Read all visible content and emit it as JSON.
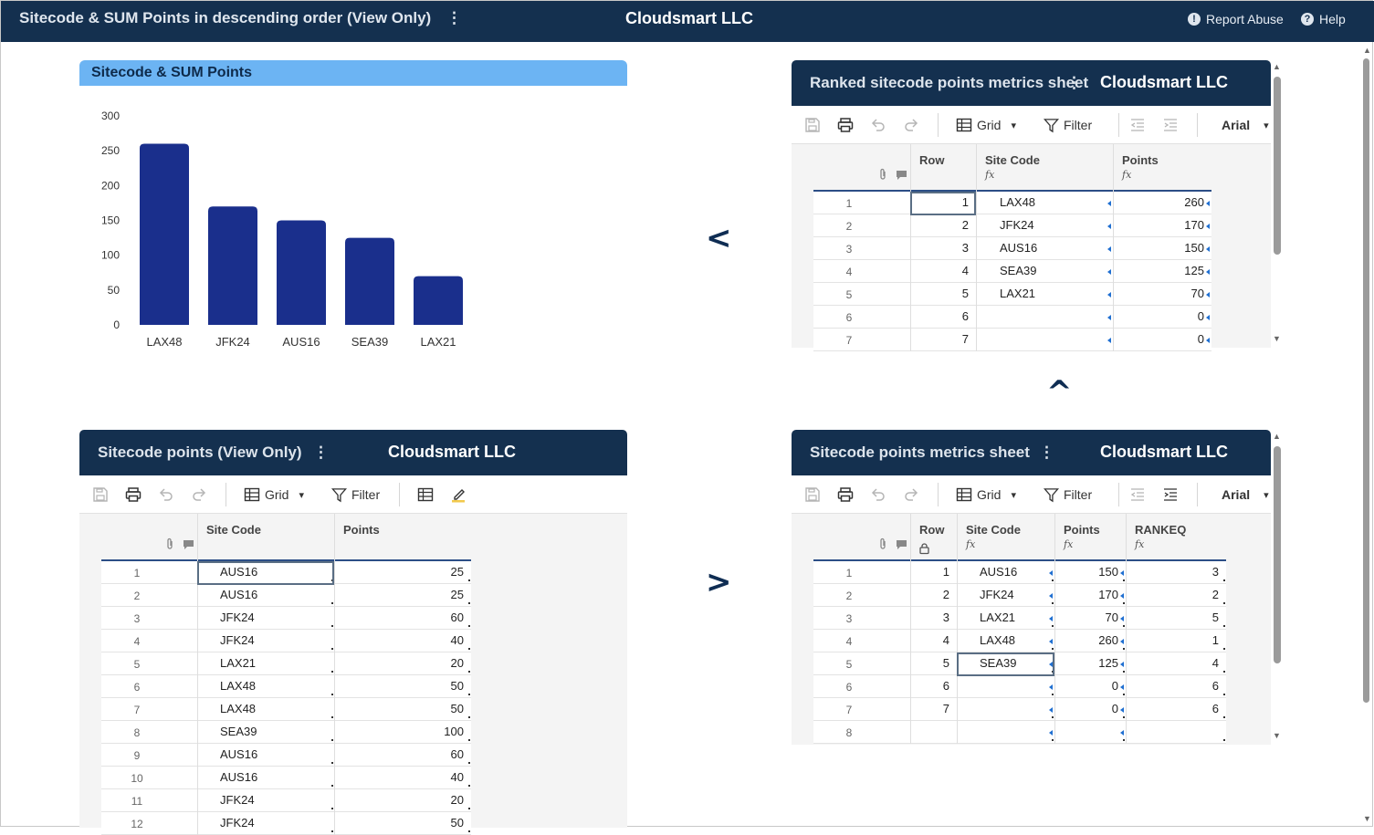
{
  "topbar": {
    "title": "Sitecode & SUM Points in descending order (View Only)",
    "center": "Cloudsmart LLC",
    "report_abuse": "Report Abuse",
    "help": "Help",
    "help_icon": "?",
    "report_icon": "!"
  },
  "chart": {
    "header": "Sitecode & SUM Points"
  },
  "chart_data": {
    "type": "bar",
    "title": "Sitecode & SUM Points",
    "categories": [
      "LAX48",
      "JFK24",
      "AUS16",
      "SEA39",
      "LAX21"
    ],
    "values": [
      260,
      170,
      150,
      125,
      70
    ],
    "ylim": [
      0,
      300
    ],
    "yticks": [
      0,
      50,
      100,
      150,
      200,
      250,
      300
    ],
    "color": "#1a2f8c",
    "grid": false,
    "legend": false
  },
  "arrows": {
    "left": "<",
    "right": ">",
    "up": "^"
  },
  "ranked": {
    "title": "Ranked sitecode points metrics sheet",
    "company": "Cloudsmart LLC",
    "toolbar": {
      "grid": "Grid",
      "filter": "Filter",
      "font": "Arial"
    },
    "columns": [
      "Row",
      "Site Code",
      "Points"
    ],
    "rows": [
      {
        "num": "1",
        "row": "1",
        "code": "LAX48",
        "points": "260"
      },
      {
        "num": "2",
        "row": "2",
        "code": "JFK24",
        "points": "170"
      },
      {
        "num": "3",
        "row": "3",
        "code": "AUS16",
        "points": "150"
      },
      {
        "num": "4",
        "row": "4",
        "code": "SEA39",
        "points": "125"
      },
      {
        "num": "5",
        "row": "5",
        "code": "LAX21",
        "points": "70"
      },
      {
        "num": "6",
        "row": "6",
        "code": "",
        "points": "0"
      },
      {
        "num": "7",
        "row": "7",
        "code": "",
        "points": "0"
      }
    ]
  },
  "raw": {
    "title": "Sitecode points (View Only)",
    "company": "Cloudsmart LLC",
    "toolbar": {
      "grid": "Grid",
      "filter": "Filter"
    },
    "columns": [
      "Site Code",
      "Points"
    ],
    "rows": [
      {
        "num": "1",
        "code": "AUS16",
        "points": "25"
      },
      {
        "num": "2",
        "code": "AUS16",
        "points": "25"
      },
      {
        "num": "3",
        "code": "JFK24",
        "points": "60"
      },
      {
        "num": "4",
        "code": "JFK24",
        "points": "40"
      },
      {
        "num": "5",
        "code": "LAX21",
        "points": "20"
      },
      {
        "num": "6",
        "code": "LAX48",
        "points": "50"
      },
      {
        "num": "7",
        "code": "LAX48",
        "points": "50"
      },
      {
        "num": "8",
        "code": "SEA39",
        "points": "100"
      },
      {
        "num": "9",
        "code": "AUS16",
        "points": "60"
      },
      {
        "num": "10",
        "code": "AUS16",
        "points": "40"
      },
      {
        "num": "11",
        "code": "JFK24",
        "points": "20"
      },
      {
        "num": "12",
        "code": "JFK24",
        "points": "50"
      }
    ]
  },
  "metrics": {
    "title": "Sitecode points metrics sheet",
    "company": "Cloudsmart LLC",
    "toolbar": {
      "grid": "Grid",
      "filter": "Filter",
      "font": "Arial"
    },
    "columns": [
      "Row",
      "Site Code",
      "Points",
      "RANKEQ"
    ],
    "rows": [
      {
        "num": "1",
        "row": "1",
        "code": "AUS16",
        "points": "150",
        "rank": "3"
      },
      {
        "num": "2",
        "row": "2",
        "code": "JFK24",
        "points": "170",
        "rank": "2"
      },
      {
        "num": "3",
        "row": "3",
        "code": "LAX21",
        "points": "70",
        "rank": "5"
      },
      {
        "num": "4",
        "row": "4",
        "code": "LAX48",
        "points": "260",
        "rank": "1"
      },
      {
        "num": "5",
        "row": "5",
        "code": "SEA39",
        "points": "125",
        "rank": "4"
      },
      {
        "num": "6",
        "row": "6",
        "code": "",
        "points": "0",
        "rank": "6"
      },
      {
        "num": "7",
        "row": "7",
        "code": "",
        "points": "0",
        "rank": "6"
      },
      {
        "num": "8",
        "row": "",
        "code": "",
        "points": "",
        "rank": ""
      }
    ]
  },
  "icons": {
    "fx": "fx",
    "kebab": "⋮",
    "dropdown": "▾",
    "up": "▲",
    "down": "▼"
  }
}
